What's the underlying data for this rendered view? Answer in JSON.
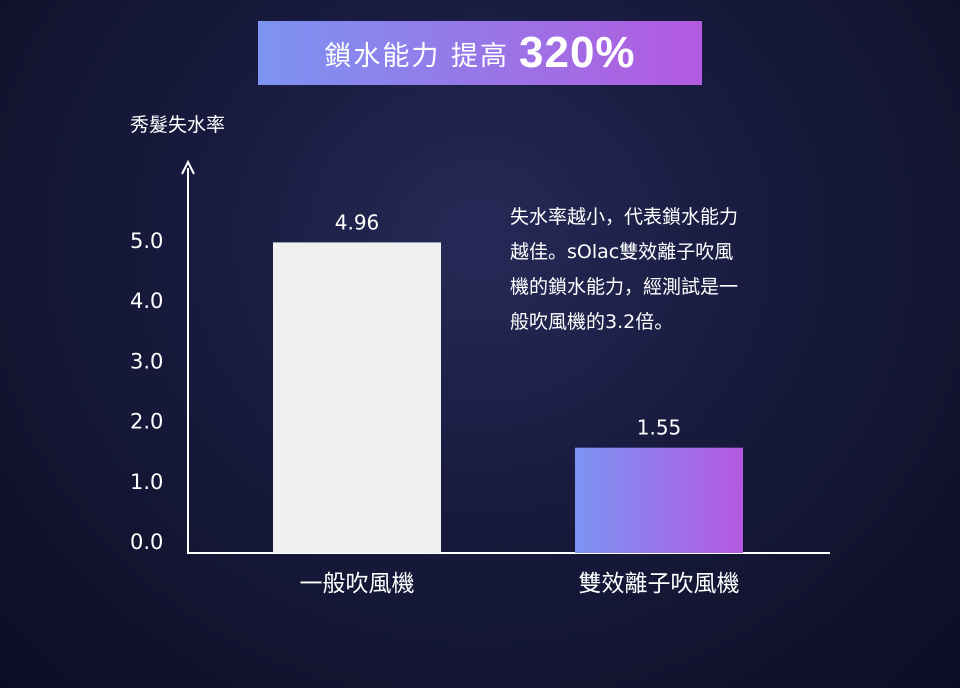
{
  "banner": {
    "title": "鎖水能力 提高",
    "highlight": "320%"
  },
  "note": "失水率越小，代表鎖水能力\n越佳。sOlac雙效離子吹風\n機的鎖水能力，經測試是一\n般吹風機的3.2倍。",
  "colors": {
    "bar1": "#f0f0f0",
    "bar2_start": "#7d93f2",
    "bar2_end": "#b35ae0",
    "axis": "#ffffff"
  },
  "chart_data": {
    "type": "bar",
    "title": "",
    "ylabel": "秀髮失水率",
    "xlabel": "",
    "categories": [
      "一般吹風機",
      "雙效離子吹風機"
    ],
    "values": [
      4.96,
      1.55
    ],
    "value_labels": [
      "4.96",
      "1.55"
    ],
    "yticks": [
      "0.0",
      "1.0",
      "2.0",
      "3.0",
      "4.0",
      "5.0"
    ],
    "ytick_values": [
      0,
      1,
      2,
      3,
      4,
      5
    ],
    "ylim": [
      0,
      5.1
    ],
    "grid": false
  }
}
